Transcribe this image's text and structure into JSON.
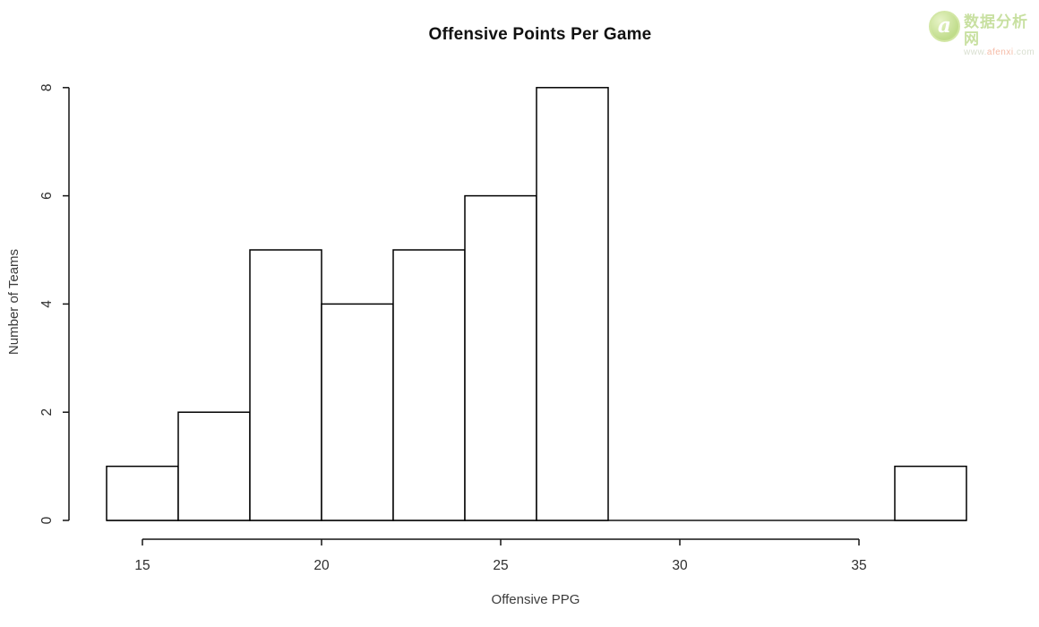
{
  "chart_data": {
    "type": "bar",
    "subtype": "histogram",
    "title": "Offensive Points Per Game",
    "xlabel": "Offensive PPG",
    "ylabel": "Number of Teams",
    "bins": [
      {
        "range": [
          14,
          16
        ],
        "count": 1
      },
      {
        "range": [
          16,
          18
        ],
        "count": 2
      },
      {
        "range": [
          18,
          20
        ],
        "count": 5
      },
      {
        "range": [
          20,
          22
        ],
        "count": 4
      },
      {
        "range": [
          22,
          24
        ],
        "count": 5
      },
      {
        "range": [
          24,
          26
        ],
        "count": 6
      },
      {
        "range": [
          26,
          28
        ],
        "count": 8
      },
      {
        "range": [
          28,
          30
        ],
        "count": 0
      },
      {
        "range": [
          30,
          32
        ],
        "count": 0
      },
      {
        "range": [
          32,
          34
        ],
        "count": 0
      },
      {
        "range": [
          34,
          36
        ],
        "count": 0
      },
      {
        "range": [
          36,
          38
        ],
        "count": 1
      }
    ],
    "xlim": [
      14,
      38
    ],
    "ylim": [
      0,
      8
    ],
    "x_ticks": [
      15,
      20,
      25,
      30,
      35
    ],
    "y_ticks": [
      0,
      2,
      4,
      6,
      8
    ],
    "grid": false,
    "legend": null,
    "bar_fill": "#ffffff",
    "bar_stroke": "#000000",
    "axis_color": "#141414",
    "tick_label_color": "#2e2e2e"
  },
  "watermark": {
    "logo_letter": "a",
    "site_name": "数据分析网",
    "url_prefix": "www.",
    "url_domain": "afenxi",
    "url_suffix": ".com",
    "brand_green": "#a8cf5f",
    "brand_light_green": "#b4d57d",
    "brand_orange": "#f2a185"
  }
}
